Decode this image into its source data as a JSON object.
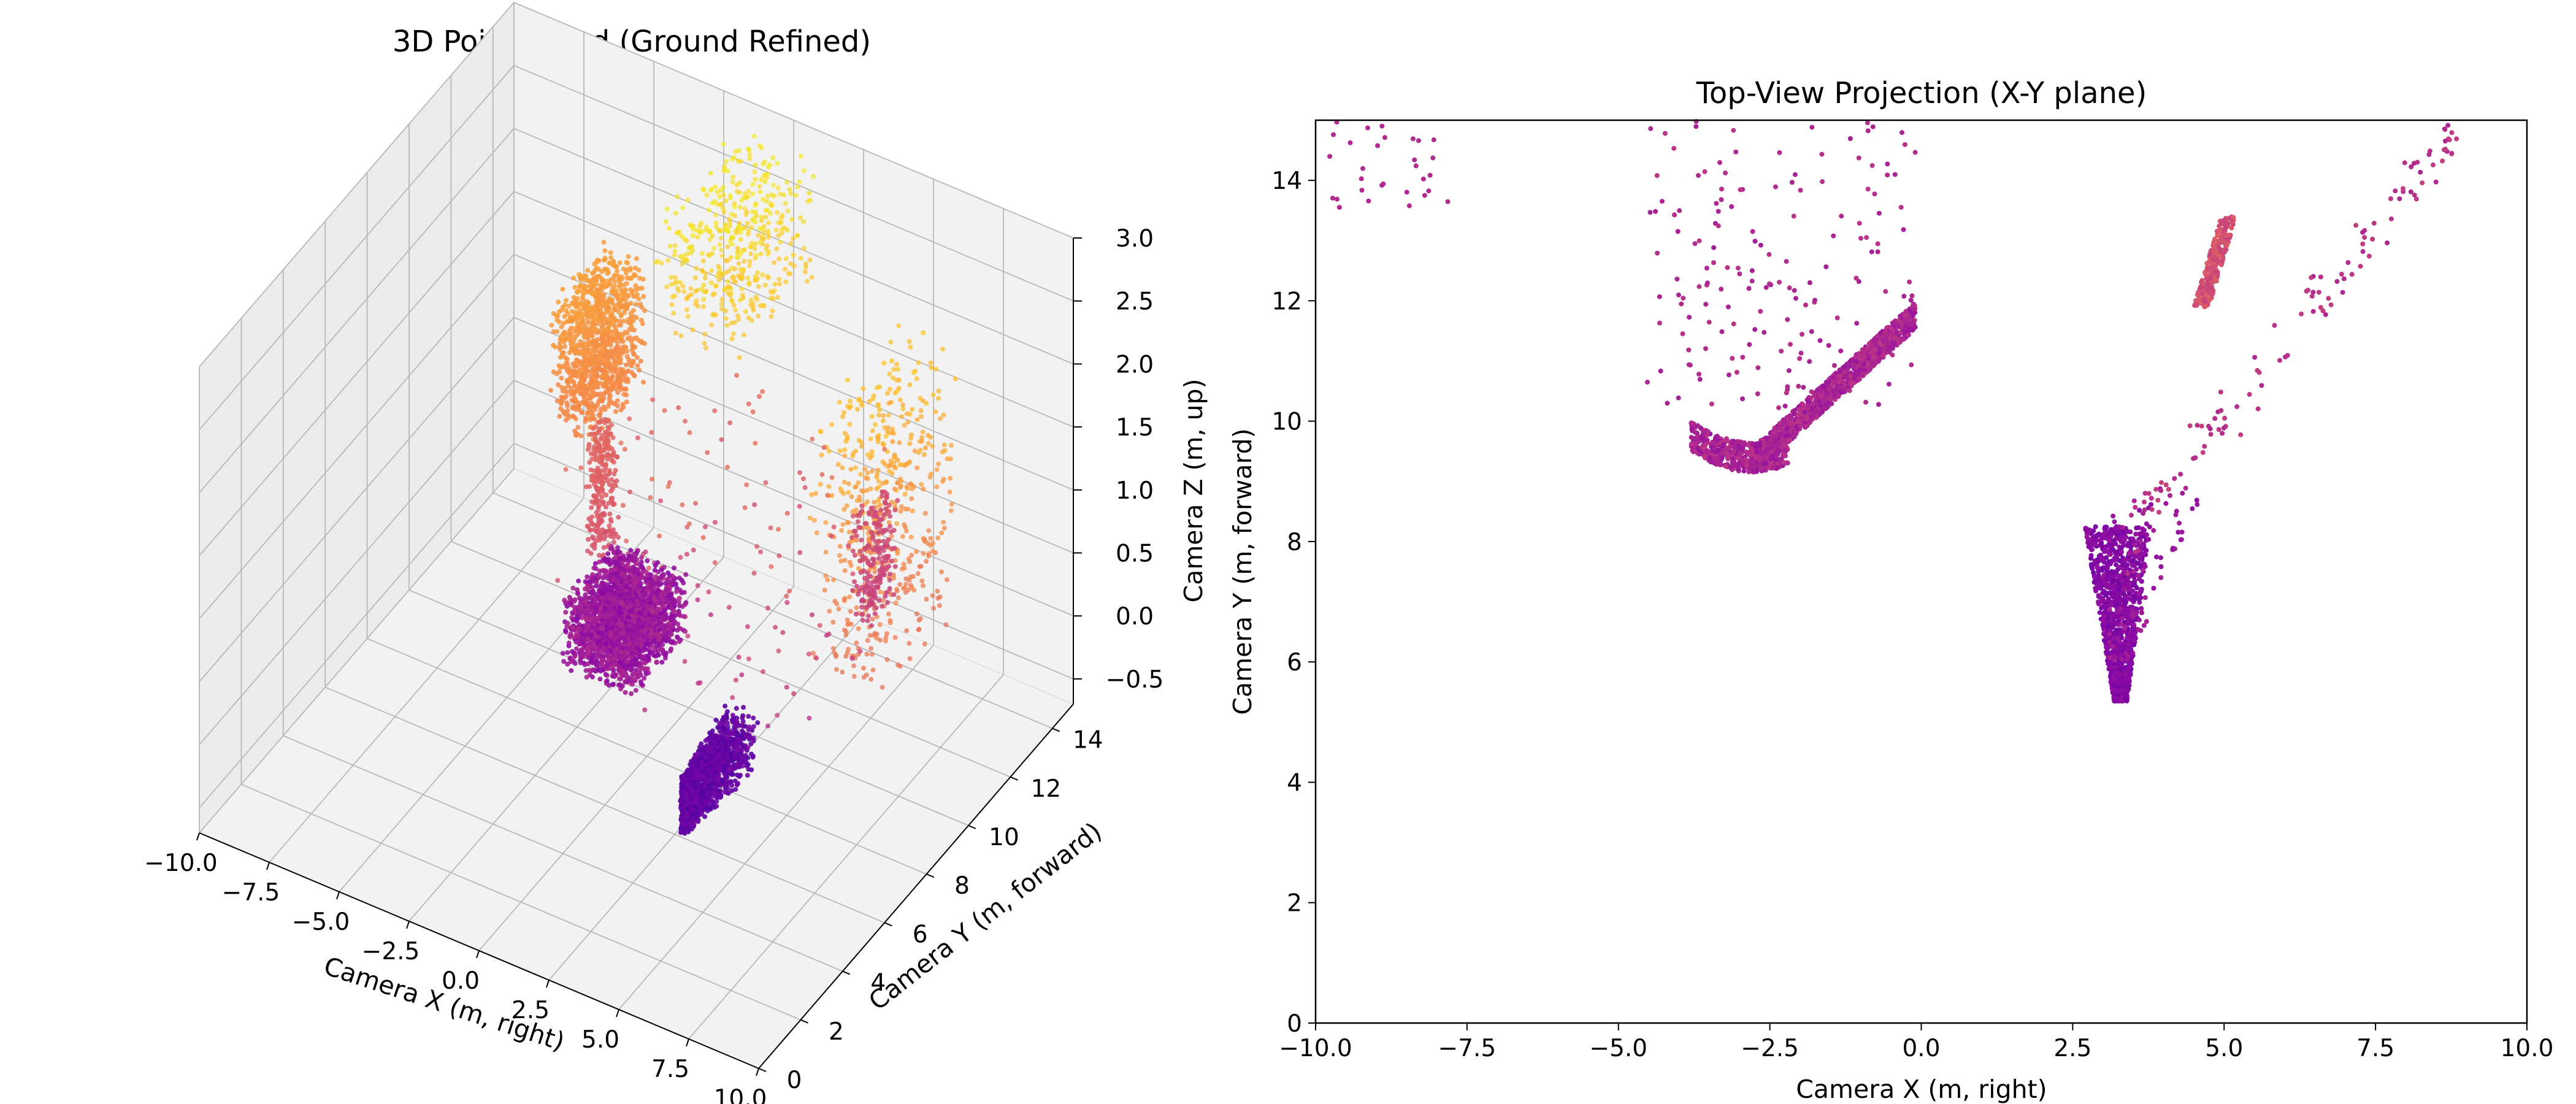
{
  "chart_data": [
    {
      "type": "scatter",
      "projection": "3d",
      "title": "3D Point Cloud (Ground Refined)",
      "xlabel": "Camera X (m, right)",
      "ylabel": "Camera Y (m, forward)",
      "zlabel": "Camera Z (m, up)",
      "xlim": [
        -10,
        10
      ],
      "ylim": [
        0,
        15
      ],
      "zlim": [
        -0.7,
        3.0
      ],
      "x_ticks": [
        "−10.0",
        "−7.5",
        "−5.0",
        "−2.5",
        "0.0",
        "2.5",
        "5.0",
        "7.5",
        "10.0"
      ],
      "y_ticks": [
        "0",
        "2",
        "4",
        "6",
        "8",
        "10",
        "12",
        "14"
      ],
      "z_ticks": [
        "−0.5",
        "0.0",
        "0.5",
        "1.0",
        "1.5",
        "2.0",
        "2.5",
        "3.0"
      ],
      "colormap": "plasma",
      "color_by": "height",
      "grid": true,
      "clusters": [
        {
          "x": [
            -3.8,
            -1.2
          ],
          "y": [
            9.0,
            11.5
          ],
          "z": [
            -0.55,
            0.0
          ]
        },
        {
          "x": [
            2.9,
            3.7
          ],
          "y": [
            5.3,
            8.3
          ],
          "z": [
            -0.45,
            0.05
          ]
        },
        {
          "x": [
            -4.6,
            -3.0
          ],
          "y": [
            9.5,
            12.0
          ],
          "z": [
            1.2,
            2.2
          ]
        },
        {
          "x": [
            -3.2,
            -2.6
          ],
          "y": [
            9.3,
            10.2
          ],
          "z": [
            0.4,
            1.3
          ]
        },
        {
          "x": [
            -2.0,
            1.0
          ],
          "y": [
            11.0,
            14.8
          ],
          "z": [
            1.9,
            2.8
          ]
        },
        {
          "x": [
            5.0,
            7.5
          ],
          "y": [
            9.0,
            13.0
          ],
          "z": [
            0.2,
            2.3
          ]
        },
        {
          "x": [
            4.4,
            5.0
          ],
          "y": [
            11.8,
            13.5
          ],
          "z": [
            0.0,
            0.9
          ]
        }
      ]
    },
    {
      "type": "scatter",
      "title": "Top-View Projection (X-Y plane)",
      "xlabel": "Camera X (m, right)",
      "ylabel": "Camera Y (m, forward)",
      "xlim": [
        -10,
        10
      ],
      "ylim": [
        0,
        15
      ],
      "x_ticks": [
        "−10.0",
        "−7.5",
        "−5.0",
        "−2.5",
        "0.0",
        "2.5",
        "5.0",
        "7.5",
        "10.0"
      ],
      "y_ticks": [
        "0",
        "2",
        "4",
        "6",
        "8",
        "10",
        "12",
        "14"
      ],
      "x_tick_values": [
        -10,
        -7.5,
        -5,
        -2.5,
        0,
        2.5,
        5,
        7.5,
        10
      ],
      "y_tick_values": [
        0,
        2,
        4,
        6,
        8,
        10,
        12,
        14
      ],
      "colormap": "plasma",
      "grid": false,
      "clusters": [
        {
          "name_hint": "dense arc",
          "x": [
            -3.8,
            -0.1
          ],
          "y": [
            9.1,
            11.5
          ]
        },
        {
          "name_hint": "narrow wedge",
          "x": [
            2.9,
            3.7
          ],
          "y": [
            5.3,
            8.3
          ]
        },
        {
          "name_hint": "upper blob",
          "x": [
            4.5,
            5.0
          ],
          "y": [
            11.9,
            13.4
          ]
        },
        {
          "name_hint": "sparse",
          "x": [
            -10,
            9.5
          ],
          "y": [
            9.0,
            15.0
          ]
        }
      ]
    }
  ]
}
